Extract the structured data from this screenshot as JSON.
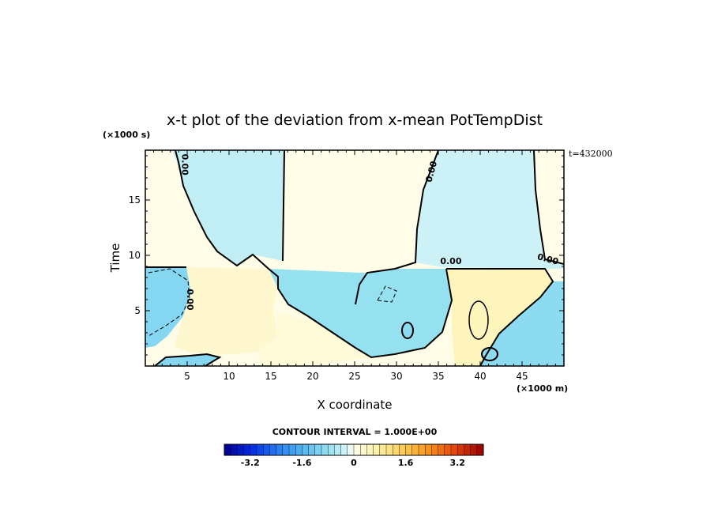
{
  "chart_data": {
    "type": "heatmap",
    "title": "x-t plot of the deviation from x-mean PotTempDist",
    "xlabel": "X coordinate",
    "ylabel": "Time",
    "x_unit": "(×1000 m)",
    "y_unit": "(×1000 s)",
    "time_stamp": "t=432000",
    "xlim": [
      0,
      50
    ],
    "ylim": [
      0,
      19.5
    ],
    "x_ticks": [
      5,
      10,
      15,
      20,
      25,
      30,
      35,
      40,
      45
    ],
    "y_ticks": [
      5,
      10,
      15
    ],
    "contour_interval_text": "CONTOUR INTERVAL = 1.000E+00",
    "contour_labels": [
      "0.00",
      "0.00",
      "0.00",
      "0.00",
      "0.00"
    ],
    "colorbar": {
      "range": [
        -4,
        4
      ],
      "step": 0.2,
      "tick_values": [
        -3.2,
        -1.6,
        0,
        1.6,
        3.2
      ],
      "tick_labels": [
        "-3.2",
        "-1.6",
        "0",
        "1.6",
        "3.2"
      ]
    },
    "regions": [
      {
        "name": "upper-left-positive",
        "sign": "positive",
        "level": 0.1
      },
      {
        "name": "upper-blue-negative",
        "sign": "negative",
        "level": -0.4
      },
      {
        "name": "upper-middle-positive",
        "sign": "positive",
        "level": 0.1
      },
      {
        "name": "upper-right-negative",
        "sign": "negative",
        "level": -0.3
      },
      {
        "name": "upper-far-right-positive",
        "sign": "positive",
        "level": 0.1
      },
      {
        "name": "lower-left-negative",
        "sign": "negative",
        "level": -1.0
      },
      {
        "name": "lower-left-positive",
        "sign": "positive",
        "level": 0.3
      },
      {
        "name": "lower-band-negative",
        "sign": "negative",
        "level": -0.8
      },
      {
        "name": "lower-middle-positive",
        "sign": "positive",
        "level": 0.2
      },
      {
        "name": "lower-right-positive",
        "sign": "positive",
        "level": 0.5
      },
      {
        "name": "lower-right-negative",
        "sign": "negative",
        "level": -0.9
      }
    ]
  }
}
